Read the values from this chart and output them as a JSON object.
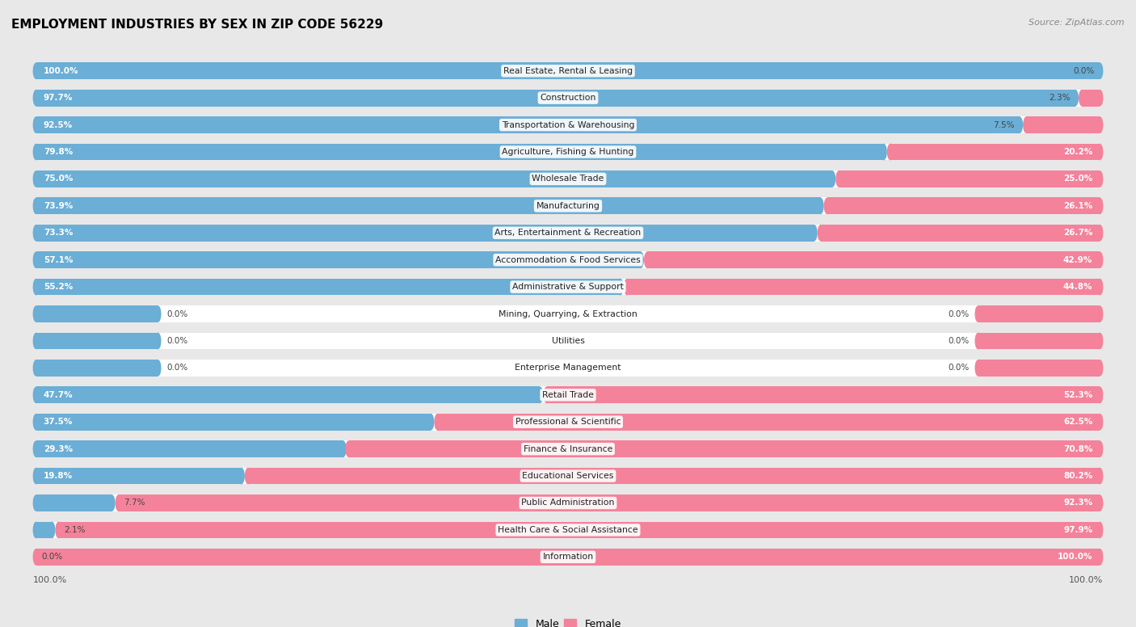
{
  "title": "EMPLOYMENT INDUSTRIES BY SEX IN ZIP CODE 56229",
  "source": "Source: ZipAtlas.com",
  "male_color": "#6baed6",
  "female_color": "#f4829a",
  "background_color": "#e8e8e8",
  "row_bg_color": "#f5f5f5",
  "row_bg_stroke": "#dddddd",
  "industries": [
    {
      "name": "Real Estate, Rental & Leasing",
      "male": 100.0,
      "female": 0.0
    },
    {
      "name": "Construction",
      "male": 97.7,
      "female": 2.3
    },
    {
      "name": "Transportation & Warehousing",
      "male": 92.5,
      "female": 7.5
    },
    {
      "name": "Agriculture, Fishing & Hunting",
      "male": 79.8,
      "female": 20.2
    },
    {
      "name": "Wholesale Trade",
      "male": 75.0,
      "female": 25.0
    },
    {
      "name": "Manufacturing",
      "male": 73.9,
      "female": 26.1
    },
    {
      "name": "Arts, Entertainment & Recreation",
      "male": 73.3,
      "female": 26.7
    },
    {
      "name": "Accommodation & Food Services",
      "male": 57.1,
      "female": 42.9
    },
    {
      "name": "Administrative & Support",
      "male": 55.2,
      "female": 44.8
    },
    {
      "name": "Mining, Quarrying, & Extraction",
      "male": 0.0,
      "female": 0.0
    },
    {
      "name": "Utilities",
      "male": 0.0,
      "female": 0.0
    },
    {
      "name": "Enterprise Management",
      "male": 0.0,
      "female": 0.0
    },
    {
      "name": "Retail Trade",
      "male": 47.7,
      "female": 52.3
    },
    {
      "name": "Professional & Scientific",
      "male": 37.5,
      "female": 62.5
    },
    {
      "name": "Finance & Insurance",
      "male": 29.3,
      "female": 70.8
    },
    {
      "name": "Educational Services",
      "male": 19.8,
      "female": 80.2
    },
    {
      "name": "Public Administration",
      "male": 7.7,
      "female": 92.3
    },
    {
      "name": "Health Care & Social Assistance",
      "male": 2.1,
      "female": 97.9
    },
    {
      "name": "Information",
      "male": 0.0,
      "female": 100.0
    }
  ]
}
